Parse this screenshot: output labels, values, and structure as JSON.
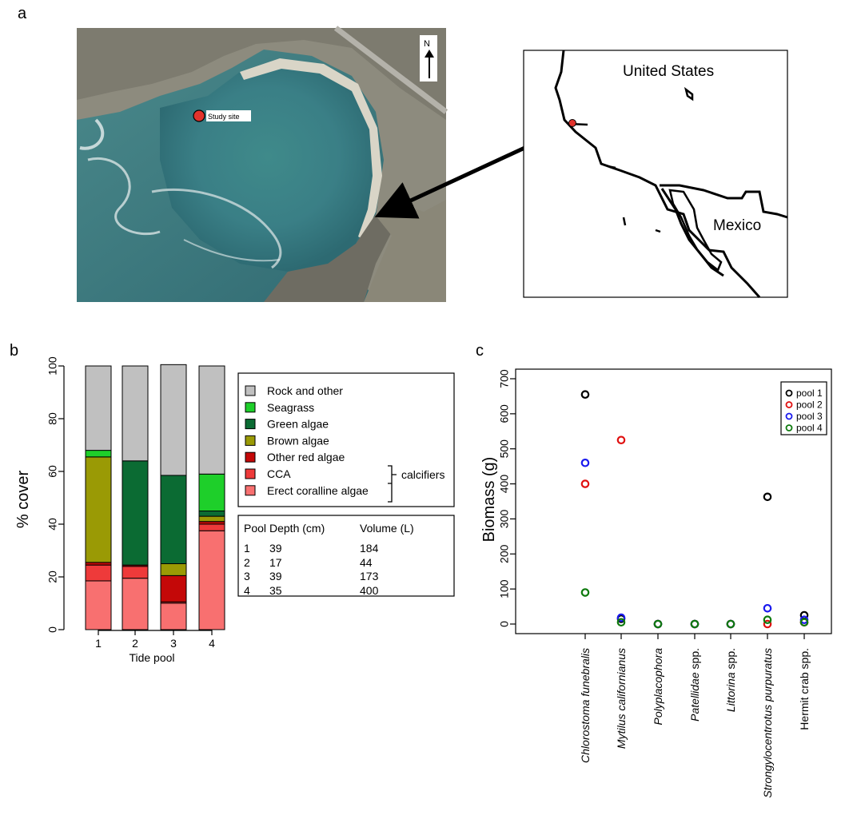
{
  "panels": {
    "a": "a",
    "b": "b",
    "c": "c"
  },
  "aerial": {
    "site_label": "Study site",
    "north_label": "N"
  },
  "inset_map": {
    "country_1": "United States",
    "country_2": "Mexico"
  },
  "colors": {
    "rock": "#c0c0c0",
    "seagrass": "#1ecf2a",
    "green_algae": "#0b6b33",
    "brown_algae": "#9a9a05",
    "other_red": "#c40808",
    "cca": "#ee3a3a",
    "erect_coralline": "#f87070",
    "pool_1": "#000000",
    "pool_2": "#e01010",
    "pool_3": "#1a1aee",
    "pool_4": "#0e7a0e"
  },
  "chart_data": [
    {
      "type": "bar",
      "stacked": true,
      "categories": [
        "1",
        "2",
        "3",
        "4"
      ],
      "xlabel": "Tide pool",
      "ylabel": "% cover",
      "ylim": [
        0,
        100
      ],
      "yticks": [
        "0",
        "20",
        "40",
        "60",
        "80",
        "100"
      ],
      "series": [
        {
          "name": "Erect coralline algae",
          "color": "#f87070",
          "values": [
            18.5,
            19.5,
            10,
            37.5
          ]
        },
        {
          "name": "CCA",
          "color": "#ee3a3a",
          "values": [
            6,
            4.5,
            0.5,
            2.5
          ]
        },
        {
          "name": "Other red algae",
          "color": "#c40808",
          "values": [
            1,
            0.5,
            10,
            1
          ]
        },
        {
          "name": "Brown algae",
          "color": "#9a9a05",
          "values": [
            40,
            0,
            4.5,
            2
          ]
        },
        {
          "name": "Green algae",
          "color": "#0b6b33",
          "values": [
            0,
            39.5,
            33.5,
            2
          ]
        },
        {
          "name": "Seagrass",
          "color": "#1ecf2a",
          "values": [
            2.5,
            0,
            0,
            14
          ]
        },
        {
          "name": "Rock and other",
          "color": "#c0c0c0",
          "values": [
            32,
            36,
            42,
            41
          ]
        }
      ],
      "legend": {
        "entries": [
          "Rock and other",
          "Seagrass",
          "Green algae",
          "Brown algae",
          "Other red algae",
          "CCA",
          "Erect coralline algae"
        ],
        "bracket_label": "calcifiers",
        "placement": "right"
      },
      "pool_table": {
        "headers": [
          "Pool",
          "Depth (cm)",
          "Volume (L)"
        ],
        "rows": [
          [
            "1",
            "39",
            "184"
          ],
          [
            "2",
            "17",
            "44"
          ],
          [
            "3",
            "39",
            "173"
          ],
          [
            "4",
            "35",
            "400"
          ]
        ]
      }
    },
    {
      "type": "scatter",
      "ylabel": "Biomass (g)",
      "ylim": [
        0,
        700
      ],
      "yticks": [
        "0",
        "100",
        "200",
        "300",
        "400",
        "500",
        "600",
        "700"
      ],
      "categories": [
        "Chlorostoma funebralis",
        "Mytilus californianus",
        "Polyplacophora",
        "Patellidae spp.",
        "Littorina spp.",
        "Strongylocentrotus purpuratus",
        "Hermit crab spp."
      ],
      "italic_parts": [
        "Chlorostoma funebralis",
        "Mytilus californianus",
        "Polyplacophora",
        "Patellidae",
        "Littorina",
        "Strongylocentrotus purpuratus",
        ""
      ],
      "series": [
        {
          "name": "pool 1",
          "color": "#000000",
          "values": [
            655,
            15,
            0,
            0,
            0,
            363,
            25
          ]
        },
        {
          "name": "pool 2",
          "color": "#e01010",
          "values": [
            400,
            525,
            0,
            0,
            0,
            0,
            5
          ]
        },
        {
          "name": "pool 3",
          "color": "#1a1aee",
          "values": [
            460,
            18,
            0,
            0,
            0,
            45,
            12
          ]
        },
        {
          "name": "pool 4",
          "color": "#0e7a0e",
          "values": [
            90,
            5,
            0,
            0,
            0,
            12,
            5
          ]
        }
      ],
      "legend": {
        "placement": "top-right"
      }
    }
  ]
}
